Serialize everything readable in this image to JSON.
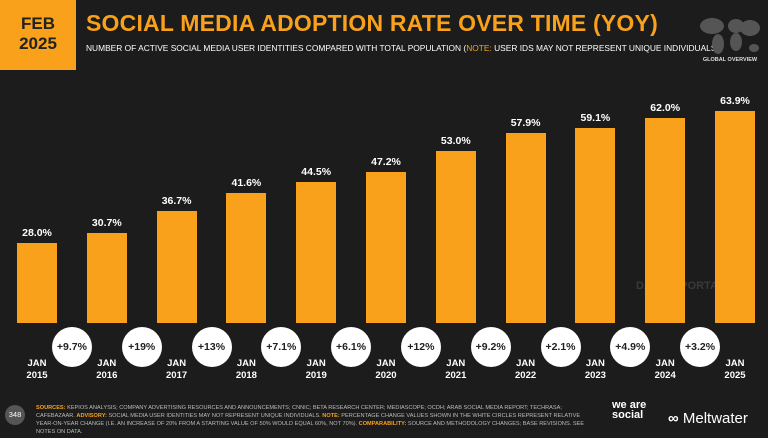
{
  "badge": {
    "month": "FEB",
    "year": "2025"
  },
  "chart_data": {
    "type": "bar",
    "title": "SOCIAL MEDIA ADOPTION RATE OVER TIME (YOY)",
    "subtitle": {
      "main": "NUMBER OF ACTIVE SOCIAL MEDIA USER IDENTITIES COMPARED WITH TOTAL POPULATION (",
      "note_label": "NOTE:",
      "note": " USER IDS MAY NOT REPRESENT UNIQUE INDIVIDUALS)"
    },
    "categories": [
      "JAN 2015",
      "JAN 2016",
      "JAN 2017",
      "JAN 2018",
      "JAN 2019",
      "JAN 2020",
      "JAN 2021",
      "JAN 2022",
      "JAN 2023",
      "JAN 2024",
      "JAN 2025"
    ],
    "values": [
      28.0,
      30.7,
      36.7,
      41.6,
      44.5,
      47.2,
      53.0,
      57.9,
      59.1,
      62.0,
      63.9
    ],
    "value_labels": [
      "28.0%",
      "30.7%",
      "36.7%",
      "41.6%",
      "44.5%",
      "47.2%",
      "53.0%",
      "57.9%",
      "59.1%",
      "62.0%",
      "63.9%"
    ],
    "change_values": [
      9.7,
      19,
      13,
      7.1,
      6.1,
      12,
      9.2,
      2.1,
      4.9,
      3.2
    ],
    "change_labels": [
      "+9.7%",
      "+19%",
      "+13%",
      "+7.1%",
      "+6.1%",
      "+12%",
      "+9.2%",
      "+2.1%",
      "+4.9%",
      "+3.2%"
    ],
    "color": "#f9a11b"
  },
  "header": {
    "section": "GLOBAL OVERVIEW",
    "watermark": "DATAREPORTAL"
  },
  "footer": {
    "page": "348",
    "notes": [
      {
        "label": "SOURCES:",
        "text": " KEPIOS ANALYSIS; COMPANY ADVERTISING RESOURCES AND ANNOUNCEMENTS; CNNIC; BETA RESEARCH CENTER; MEDIASCOPE; OCDH; ARAB SOCIAL MEDIA REPORT; TECHRASA; CAFEBAZAAR. "
      },
      {
        "label": "ADVISORY:",
        "text": " SOCIAL MEDIA USER IDENTITIES MAY NOT REPRESENT UNIQUE INDIVIDUALS. "
      },
      {
        "label": "NOTE:",
        "text": " PERCENTAGE CHANGE VALUES SHOWN IN THE WHITE CIRCLES REPRESENT RELATIVE YEAR-ON-YEAR CHANGE (I.E. AN INCREASE OF 20% FROM A STARTING VALUE OF 50% WOULD EQUAL 60%, NOT 70%). "
      },
      {
        "label": "COMPARABILITY:",
        "text": " SOURCE AND METHODOLOGY CHANGES; BASE REVISIONS. SEE NOTES ON DATA."
      }
    ],
    "brand1": "we are social",
    "brand2": "Meltwater"
  }
}
